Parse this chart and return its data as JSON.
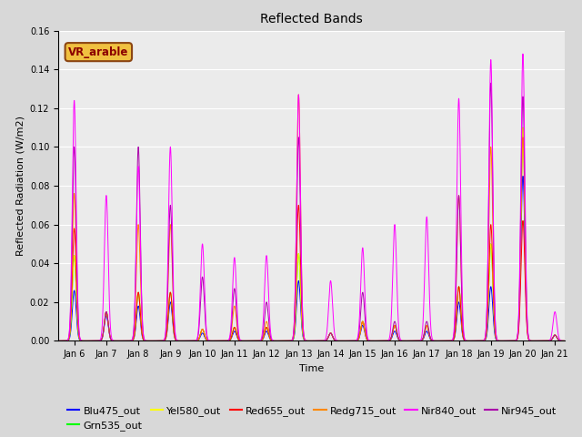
{
  "title": "Reflected Bands",
  "xlabel": "Time",
  "ylabel": "Reflected Radiation (W/m2)",
  "annotation": "VR_arable",
  "ylim": [
    0,
    0.16
  ],
  "xlim_days": [
    5.5,
    21.3
  ],
  "x_ticks_labels": [
    "Jan 6",
    "Jan 7",
    "Jan 8",
    "Jan 9",
    "Jan 10",
    "Jan 11",
    "Jan 12",
    "Jan 13",
    "Jan 14",
    "Jan 15",
    "Jan 16",
    "Jan 17",
    "Jan 18",
    "Jan 19",
    "Jan 20",
    "Jan 21"
  ],
  "x_ticks_pos": [
    6,
    7,
    8,
    9,
    10,
    11,
    12,
    13,
    14,
    15,
    16,
    17,
    18,
    19,
    20,
    21
  ],
  "series": [
    {
      "name": "Blu475_out",
      "color": "#0000ff"
    },
    {
      "name": "Grn535_out",
      "color": "#00ff00"
    },
    {
      "name": "Yel580_out",
      "color": "#ffff00"
    },
    {
      "name": "Red655_out",
      "color": "#ff0000"
    },
    {
      "name": "Redg715_out",
      "color": "#ff8800"
    },
    {
      "name": "Nir840_out",
      "color": "#ff00ff"
    },
    {
      "name": "Nir945_out",
      "color": "#aa00aa"
    }
  ],
  "daily_peaks": [
    {
      "day": 6,
      "sigma": 0.06,
      "values": [
        0.026,
        0.044,
        0.044,
        0.058,
        0.076,
        0.124,
        0.1
      ]
    },
    {
      "day": 7,
      "sigma": 0.06,
      "values": [
        0.013,
        0.015,
        0.015,
        0.015,
        0.015,
        0.075,
        0.015
      ]
    },
    {
      "day": 8,
      "sigma": 0.06,
      "values": [
        0.018,
        0.025,
        0.025,
        0.025,
        0.06,
        0.09,
        0.1
      ]
    },
    {
      "day": 9,
      "sigma": 0.06,
      "values": [
        0.02,
        0.025,
        0.025,
        0.025,
        0.06,
        0.1,
        0.07
      ]
    },
    {
      "day": 10,
      "sigma": 0.06,
      "values": [
        0.004,
        0.006,
        0.006,
        0.006,
        0.006,
        0.05,
        0.033
      ]
    },
    {
      "day": 11,
      "sigma": 0.06,
      "values": [
        0.005,
        0.007,
        0.007,
        0.007,
        0.018,
        0.043,
        0.027
      ]
    },
    {
      "day": 12,
      "sigma": 0.06,
      "values": [
        0.005,
        0.007,
        0.007,
        0.007,
        0.01,
        0.044,
        0.02
      ]
    },
    {
      "day": 13,
      "sigma": 0.06,
      "values": [
        0.031,
        0.045,
        0.045,
        0.07,
        0.127,
        0.127,
        0.105
      ]
    },
    {
      "day": 14,
      "sigma": 0.06,
      "values": [
        0.004,
        0.004,
        0.004,
        0.004,
        0.004,
        0.031,
        0.004
      ]
    },
    {
      "day": 15,
      "sigma": 0.06,
      "values": [
        0.008,
        0.01,
        0.01,
        0.01,
        0.01,
        0.048,
        0.025
      ]
    },
    {
      "day": 16,
      "sigma": 0.06,
      "values": [
        0.005,
        0.008,
        0.008,
        0.008,
        0.008,
        0.06,
        0.01
      ]
    },
    {
      "day": 17,
      "sigma": 0.06,
      "values": [
        0.005,
        0.008,
        0.008,
        0.008,
        0.008,
        0.064,
        0.01
      ]
    },
    {
      "day": 18,
      "sigma": 0.06,
      "values": [
        0.02,
        0.028,
        0.028,
        0.028,
        0.075,
        0.125,
        0.075
      ]
    },
    {
      "day": 19,
      "sigma": 0.06,
      "values": [
        0.028,
        0.05,
        0.05,
        0.06,
        0.1,
        0.145,
        0.133
      ]
    },
    {
      "day": 20,
      "sigma": 0.06,
      "values": [
        0.085,
        0.11,
        0.11,
        0.062,
        0.105,
        0.148,
        0.126
      ]
    },
    {
      "day": 21,
      "sigma": 0.06,
      "values": [
        0.003,
        0.003,
        0.003,
        0.003,
        0.003,
        0.015,
        0.003
      ]
    }
  ],
  "plot_bg_color": "#ebebeb",
  "fig_bg_color": "#d8d8d8",
  "grid_color": "#ffffff",
  "linewidth": 0.7,
  "title_fontsize": 10,
  "tick_fontsize": 7,
  "label_fontsize": 8,
  "legend_fontsize": 8
}
